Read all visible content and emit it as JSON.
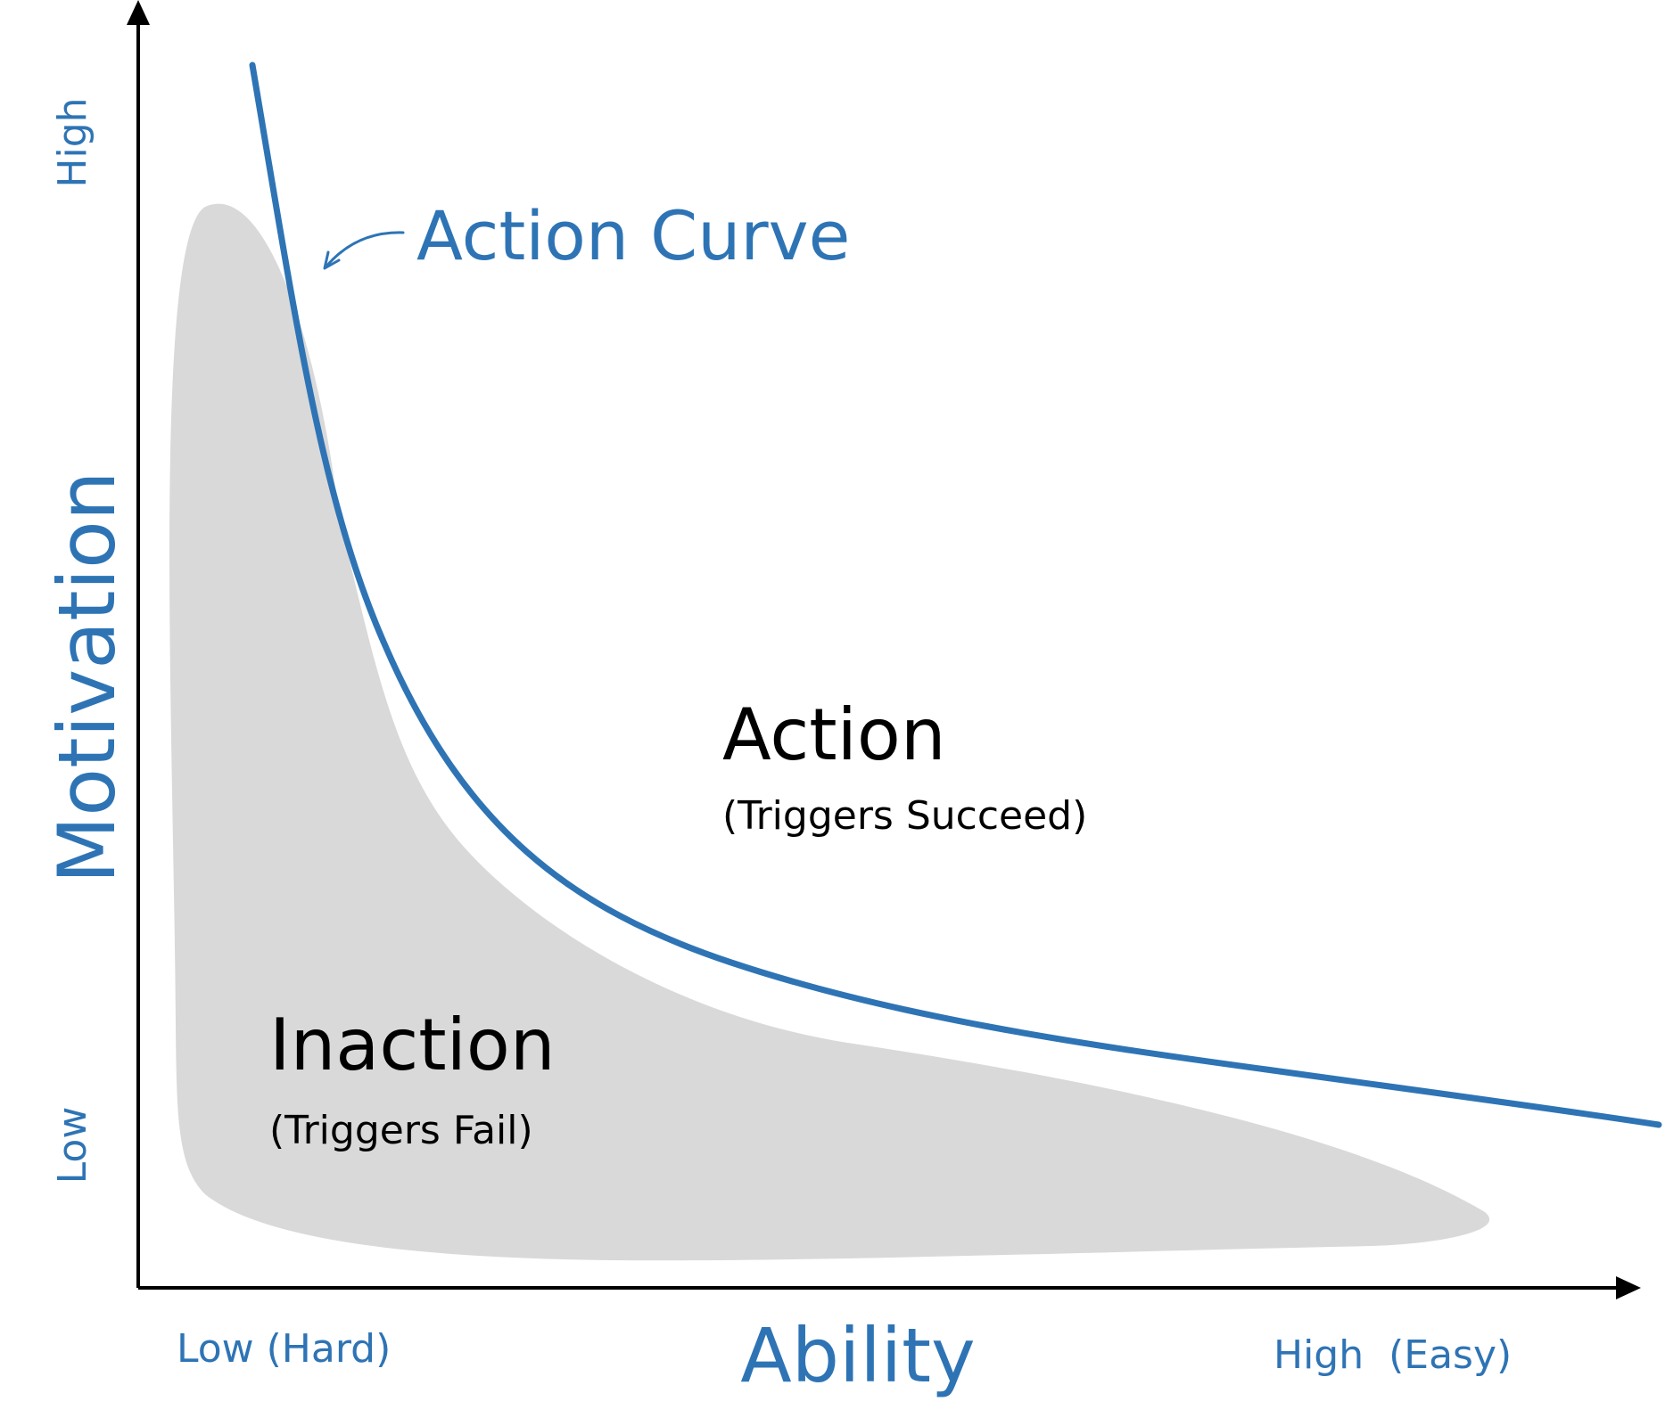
{
  "diagram": {
    "y_axis": {
      "label": "Motivation",
      "high_label": "High",
      "low_label": "Low"
    },
    "x_axis": {
      "label": "Ability",
      "low_label": "Low (Hard)",
      "high_label": "High  (Easy)"
    },
    "curve_label": "Action Curve",
    "action_region": {
      "title": "Action",
      "subtitle": "(Triggers Succeed)"
    },
    "inaction_region": {
      "title": "Inaction",
      "subtitle": "(Triggers Fail)"
    },
    "colors": {
      "accent_blue": "#2e74b5",
      "inaction_fill": "#d9d9d9",
      "axis": "#000000"
    }
  }
}
